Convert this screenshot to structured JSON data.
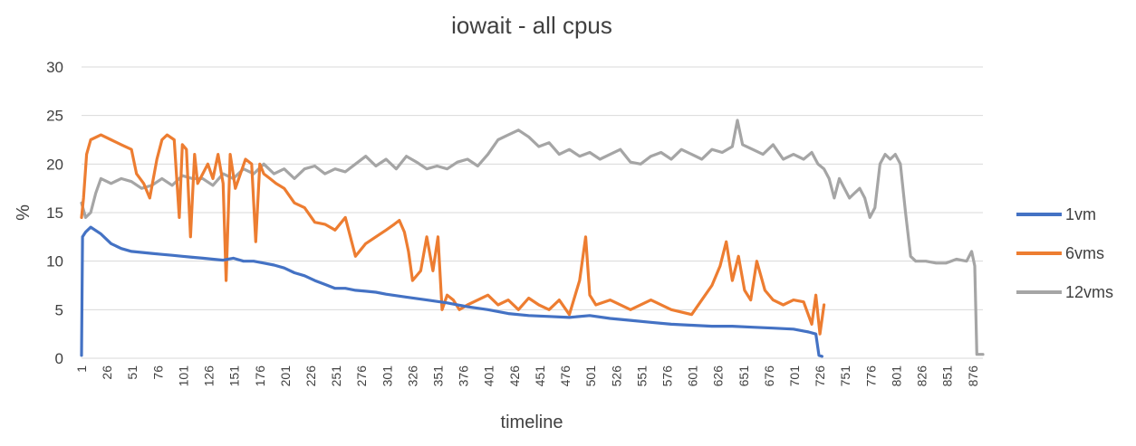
{
  "chart_data": {
    "type": "line",
    "title": "iowait - all cpus",
    "xlabel": "timeline",
    "ylabel": "%",
    "ylim": [
      0,
      30
    ],
    "yticks": [
      "0",
      "5",
      "10",
      "15",
      "20",
      "25",
      "30"
    ],
    "xlim": [
      1,
      886
    ],
    "xticks": [
      "1",
      "26",
      "51",
      "76",
      "101",
      "126",
      "151",
      "176",
      "201",
      "226",
      "251",
      "276",
      "301",
      "326",
      "351",
      "376",
      "401",
      "426",
      "451",
      "476",
      "501",
      "526",
      "551",
      "576",
      "601",
      "626",
      "651",
      "676",
      "701",
      "726",
      "751",
      "776",
      "801",
      "826",
      "851",
      "876"
    ],
    "grid": true,
    "legend_position": "right",
    "series": [
      {
        "name": "1vm",
        "color": "#4472c4",
        "x": [
          1,
          2,
          5,
          10,
          20,
          30,
          40,
          50,
          60,
          70,
          80,
          90,
          100,
          110,
          120,
          130,
          140,
          150,
          160,
          170,
          180,
          190,
          200,
          210,
          220,
          230,
          240,
          250,
          260,
          270,
          280,
          290,
          300,
          320,
          340,
          360,
          380,
          400,
          420,
          440,
          460,
          480,
          500,
          520,
          540,
          560,
          580,
          600,
          620,
          640,
          660,
          680,
          700,
          715,
          722,
          725,
          728
        ],
        "y": [
          0.3,
          12.5,
          13.0,
          13.5,
          12.8,
          11.8,
          11.3,
          11.0,
          10.9,
          10.8,
          10.7,
          10.6,
          10.5,
          10.4,
          10.3,
          10.2,
          10.1,
          10.3,
          10.0,
          10.0,
          9.8,
          9.6,
          9.3,
          8.8,
          8.5,
          8.0,
          7.6,
          7.2,
          7.2,
          7.0,
          6.9,
          6.8,
          6.6,
          6.3,
          6.0,
          5.7,
          5.3,
          5.0,
          4.6,
          4.4,
          4.3,
          4.2,
          4.4,
          4.1,
          3.9,
          3.7,
          3.5,
          3.4,
          3.3,
          3.3,
          3.2,
          3.1,
          3.0,
          2.7,
          2.5,
          0.3,
          0.2
        ]
      },
      {
        "name": "6vms",
        "color": "#ed7d31",
        "x": [
          1,
          3,
          6,
          10,
          20,
          30,
          40,
          50,
          55,
          62,
          68,
          75,
          80,
          85,
          92,
          97,
          100,
          104,
          108,
          112,
          115,
          120,
          125,
          130,
          135,
          140,
          143,
          147,
          152,
          157,
          162,
          168,
          172,
          176,
          180,
          186,
          192,
          200,
          210,
          220,
          230,
          240,
          250,
          260,
          270,
          280,
          290,
          300,
          308,
          313,
          318,
          322,
          326,
          334,
          340,
          346,
          351,
          355,
          360,
          366,
          372,
          380,
          390,
          400,
          410,
          420,
          430,
          440,
          450,
          460,
          470,
          480,
          490,
          496,
          500,
          506,
          520,
          540,
          560,
          580,
          600,
          610,
          620,
          628,
          634,
          640,
          646,
          652,
          658,
          664,
          672,
          680,
          690,
          700,
          710,
          718,
          722,
          726,
          730
        ],
        "y": [
          14.5,
          16.5,
          21.0,
          22.5,
          23.0,
          22.5,
          22.0,
          21.5,
          19.0,
          18.0,
          16.5,
          20.5,
          22.5,
          23.0,
          22.5,
          14.5,
          22.0,
          21.5,
          12.5,
          21.0,
          18.0,
          19.0,
          20.0,
          18.5,
          21.0,
          18.0,
          8.0,
          21.0,
          17.5,
          19.0,
          20.5,
          20.0,
          12.0,
          20.0,
          19.0,
          18.5,
          18.0,
          17.5,
          16.0,
          15.5,
          14.0,
          13.8,
          13.2,
          14.5,
          10.5,
          11.8,
          12.5,
          13.2,
          13.8,
          14.2,
          13.0,
          11.0,
          8.0,
          9.0,
          12.5,
          9.0,
          12.5,
          5.0,
          6.5,
          6.0,
          5.0,
          5.5,
          6.0,
          6.5,
          5.5,
          6.0,
          5.0,
          6.2,
          5.5,
          5.0,
          6.0,
          4.5,
          8.0,
          12.5,
          6.5,
          5.5,
          6.0,
          5.0,
          6.0,
          5.0,
          4.5,
          6.0,
          7.5,
          9.5,
          12.0,
          8.0,
          10.5,
          7.0,
          6.0,
          10.0,
          7.0,
          6.0,
          5.5,
          6.0,
          5.8,
          3.5,
          6.5,
          2.5,
          5.5
        ]
      },
      {
        "name": "12vms",
        "color": "#a5a5a5",
        "x": [
          1,
          5,
          10,
          15,
          20,
          30,
          40,
          50,
          60,
          70,
          80,
          90,
          100,
          110,
          120,
          130,
          140,
          150,
          160,
          170,
          180,
          190,
          200,
          210,
          220,
          230,
          240,
          250,
          260,
          270,
          280,
          290,
          300,
          310,
          320,
          330,
          340,
          350,
          360,
          370,
          380,
          390,
          400,
          410,
          420,
          430,
          440,
          450,
          460,
          470,
          480,
          490,
          500,
          510,
          520,
          530,
          540,
          550,
          560,
          570,
          580,
          590,
          600,
          610,
          620,
          630,
          640,
          645,
          650,
          660,
          670,
          680,
          690,
          700,
          710,
          718,
          724,
          730,
          735,
          740,
          745,
          750,
          755,
          760,
          765,
          770,
          775,
          780,
          785,
          790,
          795,
          800,
          805,
          810,
          815,
          820,
          830,
          840,
          850,
          860,
          870,
          875,
          878,
          880,
          886
        ],
        "y": [
          16.0,
          14.5,
          15.0,
          17.0,
          18.5,
          18.0,
          18.5,
          18.2,
          17.5,
          17.8,
          18.5,
          17.8,
          18.8,
          18.5,
          18.5,
          17.8,
          19.0,
          18.5,
          19.5,
          19.0,
          20.0,
          19.0,
          19.5,
          18.5,
          19.5,
          19.8,
          19.0,
          19.5,
          19.2,
          20.0,
          20.8,
          19.8,
          20.5,
          19.5,
          20.8,
          20.2,
          19.5,
          19.8,
          19.5,
          20.2,
          20.5,
          19.8,
          21.0,
          22.5,
          23.0,
          23.5,
          22.8,
          21.8,
          22.2,
          21.0,
          21.5,
          20.8,
          21.2,
          20.5,
          21.0,
          21.5,
          20.2,
          20.0,
          20.8,
          21.2,
          20.5,
          21.5,
          21.0,
          20.5,
          21.5,
          21.2,
          21.8,
          24.5,
          22.0,
          21.5,
          21.0,
          22.0,
          20.5,
          21.0,
          20.5,
          21.2,
          20.0,
          19.5,
          18.5,
          16.5,
          18.5,
          17.5,
          16.5,
          17.0,
          17.5,
          16.5,
          14.5,
          15.5,
          20.0,
          21.0,
          20.5,
          21.0,
          20.0,
          15.0,
          10.5,
          10.0,
          10.0,
          9.8,
          9.8,
          10.2,
          10.0,
          11.0,
          9.5,
          0.4,
          0.4
        ]
      }
    ]
  }
}
